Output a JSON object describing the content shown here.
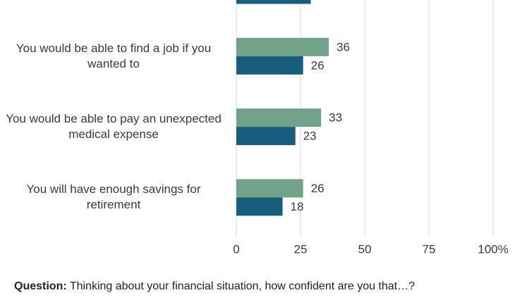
{
  "chart_data": {
    "type": "barh",
    "categories": [
      null,
      "You would be able to find a job if you wanted to",
      "You would be able to pay an unexpected medical expense",
      "You will have enough savings for retirement"
    ],
    "series": [
      {
        "color": "#6fa287",
        "values": [
          null,
          36,
          33,
          26
        ]
      },
      {
        "color": "#175e7e",
        "values": [
          29,
          26,
          23,
          18
        ]
      }
    ],
    "xlim": [
      0,
      100
    ],
    "xticks": [
      0,
      25,
      50,
      75,
      {
        "value": 100,
        "label": "100%"
      }
    ],
    "grid": true
  },
  "footer": {
    "question_label": "Question:",
    "question_text": "Thinking about your financial situation, how confident are you that…?"
  }
}
